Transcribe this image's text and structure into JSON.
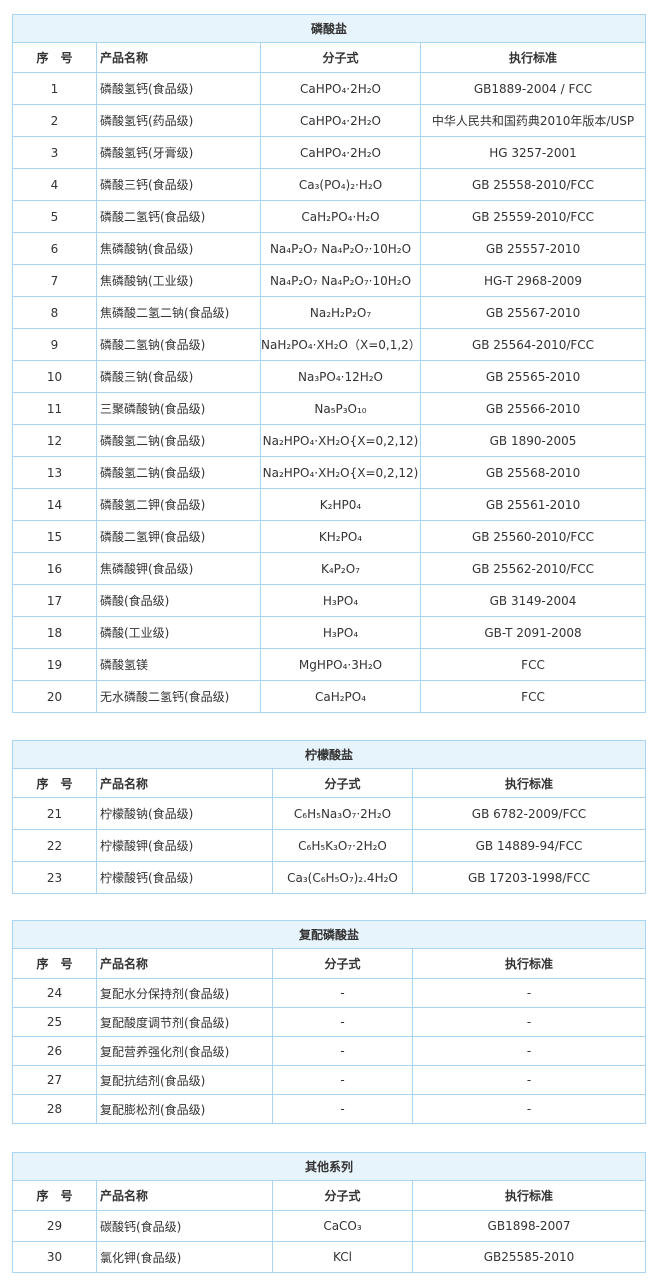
{
  "headers": [
    "序　号",
    "产品名称",
    "分子式",
    "执行标准"
  ],
  "tables": [
    {
      "title": "磷酸盐",
      "rows": [
        [
          "1",
          "磷酸氢钙(食品级)",
          "CaHPO₄·2H₂O",
          "GB1889-2004 / FCC"
        ],
        [
          "2",
          "磷酸氢钙(药品级)",
          "CaHPO₄·2H₂O",
          "中华人民共和国药典2010年版本/USP"
        ],
        [
          "3",
          "磷酸氢钙(牙膏级)",
          "CaHPO₄·2H₂O",
          "HG 3257-2001"
        ],
        [
          "4",
          "磷酸三钙(食品级)",
          "Ca₃(PO₄)₂·H₂O",
          "GB 25558-2010/FCC"
        ],
        [
          "5",
          "磷酸二氢钙(食品级)",
          "CaH₂PO₄·H₂O",
          "GB 25559-2010/FCC"
        ],
        [
          "6",
          "焦磷酸钠(食品级)",
          "Na₄P₂O₇ Na₄P₂O₇·10H₂O",
          "GB 25557-2010"
        ],
        [
          "7",
          "焦磷酸钠(工业级)",
          "Na₄P₂O₇ Na₄P₂O₇·10H₂O",
          "HG-T 2968-2009"
        ],
        [
          "8",
          "焦磷酸二氢二钠(食品级)",
          "Na₂H₂P₂O₇",
          "GB 25567-2010"
        ],
        [
          "9",
          "磷酸二氢钠(食品级)",
          "NaH₂PO₄·XH₂O（X=0,1,2）",
          "GB 25564-2010/FCC"
        ],
        [
          "10",
          "磷酸三钠(食品级)",
          "Na₃PO₄·12H₂O",
          "GB 25565-2010"
        ],
        [
          "11",
          "三聚磷酸钠(食品级)",
          "Na₅P₃O₁₀",
          "GB 25566-2010"
        ],
        [
          "12",
          "磷酸氢二钠(食品级)",
          "Na₂HPO₄·XH₂O{X=0,2,12)",
          "GB 1890-2005"
        ],
        [
          "13",
          "磷酸氢二钠(食品级)",
          "Na₂HPO₄·XH₂O{X=0,2,12)",
          "GB 25568-2010"
        ],
        [
          "14",
          "磷酸氢二钾(食品级)",
          "K₂HP0₄",
          "GB 25561-2010"
        ],
        [
          "15",
          "磷酸二氢钾(食品级)",
          "KH₂PO₄",
          "GB 25560-2010/FCC"
        ],
        [
          "16",
          "焦磷酸钾(食品级)",
          "K₄P₂O₇",
          "GB 25562-2010/FCC"
        ],
        [
          "17",
          "磷酸(食品级)",
          "H₃PO₄",
          "GB 3149-2004"
        ],
        [
          "18",
          "磷酸(工业级)",
          "H₃PO₄",
          "GB-T 2091-2008"
        ],
        [
          "19",
          "磷酸氢镁",
          "MgHPO₄·3H₂O",
          "FCC"
        ],
        [
          "20",
          "无水磷酸二氢钙(食品级)",
          "CaH₂PO₄",
          "FCC"
        ]
      ]
    },
    {
      "title": "柠檬酸盐",
      "rows": [
        [
          "21",
          "柠檬酸钠(食品级)",
          "C₆H₅Na₃O₇·2H₂O",
          "GB 6782-2009/FCC"
        ],
        [
          "22",
          "柠檬酸钾(食品级)",
          "C₆H₅K₃O₇·2H₂O",
          "GB 14889-94/FCC"
        ],
        [
          "23",
          "柠檬酸钙(食品级)",
          "Ca₃(C₆H₅O₇)₂.4H₂O",
          "GB 17203-1998/FCC"
        ]
      ]
    },
    {
      "title": "复配磷酸盐",
      "rows": [
        [
          "24",
          "复配水分保持剂(食品级)",
          "-",
          "-"
        ],
        [
          "25",
          "复配酸度调节剂(食品级)",
          "-",
          "-"
        ],
        [
          "26",
          "复配营养强化剂(食品级)",
          "-",
          "-"
        ],
        [
          "27",
          "复配抗结剂(食品级)",
          "-",
          "-"
        ],
        [
          "28",
          "复配膨松剂(食品级)",
          "-",
          "-"
        ]
      ]
    },
    {
      "title": "其他系列",
      "rows": [
        [
          "29",
          "碳酸钙(食品级)",
          "CaCO₃",
          "GB1898-2007"
        ],
        [
          "30",
          "氯化钾(食品级)",
          "KCl",
          "GB25585-2010"
        ]
      ]
    }
  ]
}
